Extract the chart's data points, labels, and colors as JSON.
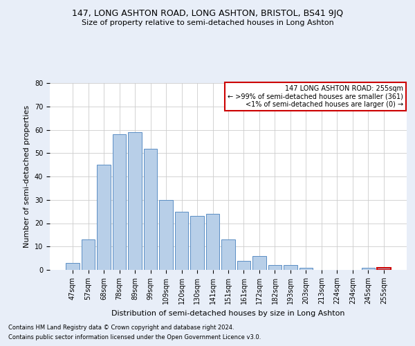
{
  "title": "147, LONG ASHTON ROAD, LONG ASHTON, BRISTOL, BS41 9JQ",
  "subtitle": "Size of property relative to semi-detached houses in Long Ashton",
  "xlabel": "Distribution of semi-detached houses by size in Long Ashton",
  "ylabel": "Number of semi-detached properties",
  "categories": [
    "47sqm",
    "57sqm",
    "68sqm",
    "78sqm",
    "89sqm",
    "99sqm",
    "109sqm",
    "120sqm",
    "130sqm",
    "141sqm",
    "151sqm",
    "161sqm",
    "172sqm",
    "182sqm",
    "193sqm",
    "203sqm",
    "213sqm",
    "224sqm",
    "234sqm",
    "245sqm",
    "255sqm"
  ],
  "values": [
    3,
    13,
    45,
    58,
    59,
    52,
    30,
    25,
    23,
    24,
    13,
    4,
    6,
    2,
    2,
    1,
    0,
    0,
    0,
    1,
    1
  ],
  "bar_color": "#b8cfe8",
  "bar_edge_color": "#5b8ec4",
  "highlight_bar_index": 20,
  "highlight_bar_edge_color": "#cc0000",
  "box_text_line1": "147 LONG ASHTON ROAD: 255sqm",
  "box_text_line2": "← >99% of semi-detached houses are smaller (361)",
  "box_text_line3": "<1% of semi-detached houses are larger (0) →",
  "box_edge_color": "#cc0000",
  "ylim": [
    0,
    80
  ],
  "yticks": [
    0,
    10,
    20,
    30,
    40,
    50,
    60,
    70,
    80
  ],
  "footnote1": "Contains HM Land Registry data © Crown copyright and database right 2024.",
  "footnote2": "Contains public sector information licensed under the Open Government Licence v3.0.",
  "background_color": "#e8eef8",
  "plot_bg_color": "#ffffff",
  "title_fontsize": 9,
  "subtitle_fontsize": 8,
  "ylabel_fontsize": 8,
  "xlabel_fontsize": 8,
  "tick_fontsize": 7,
  "annotation_fontsize": 7,
  "footnote_fontsize": 6
}
